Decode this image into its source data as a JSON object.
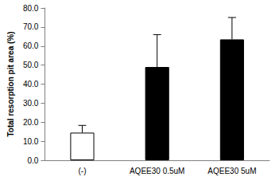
{
  "chart_data": {
    "type": "bar",
    "y_label": "Total resorption pit area (%)",
    "categories": [
      "(-)",
      "AQEE30 0.5uM",
      "AQEE30 5uM"
    ],
    "values": [
      14.5,
      49.0,
      63.5
    ],
    "errors": [
      3.8,
      17.0,
      11.5
    ],
    "colors": [
      "#ffffff",
      "#000000",
      "#000000"
    ],
    "ylim": [
      0,
      80
    ],
    "yticks": [
      {
        "value": 0,
        "label": "0.0"
      },
      {
        "value": 10,
        "label": "10.0"
      },
      {
        "value": 20,
        "label": "20.0"
      },
      {
        "value": 30,
        "label": "30.0"
      },
      {
        "value": 40,
        "label": "40.0"
      },
      {
        "value": 50,
        "label": "50.0"
      },
      {
        "value": 60,
        "label": "60.0"
      },
      {
        "value": 70,
        "label": "70.0"
      },
      {
        "value": 80,
        "label": "80.0"
      }
    ],
    "grid": false
  }
}
